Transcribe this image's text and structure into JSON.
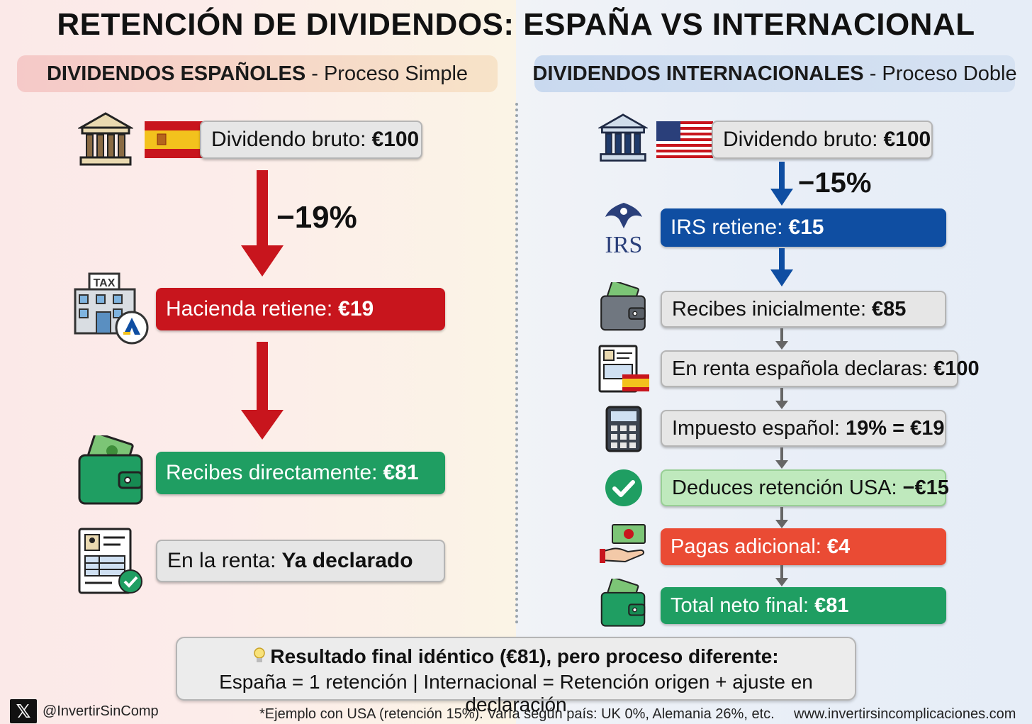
{
  "title": "RETENCIÓN DE DIVIDENDOS: ESPAÑA VS INTERNACIONAL",
  "left": {
    "header_bold": "DIVIDENDOS ESPAÑOLES",
    "header_rest": "- Proceso Simple",
    "gross_label": "Dividendo bruto:",
    "gross_value": "€100",
    "pct": "−19%",
    "withheld_label": "Hacienda retiene:",
    "withheld_value": "€19",
    "receive_label": "Recibes directamente:",
    "receive_value": "€81",
    "renta_label": "En la renta:",
    "renta_value": "Ya declarado"
  },
  "right": {
    "header_bold": "DIVIDENDOS INTERNACIONALES",
    "header_rest": "- Proceso Doble",
    "gross_label": "Dividendo bruto:",
    "gross_value": "€100",
    "pct": "−15%",
    "irs_logo": "IRS",
    "irs_label": "IRS retiene:",
    "irs_value": "€15",
    "initial_label": "Recibes inicialmente:",
    "initial_value": "€85",
    "declare_label": "En renta española declaras:",
    "declare_value": "€100",
    "tax_label": "Impuesto español:",
    "tax_value": "19% = €19",
    "deduct_label": "Deduces retención USA:",
    "deduct_value": "−€15",
    "extra_label": "Pagas adicional:",
    "extra_value": "€4",
    "net_label": "Total neto final:",
    "net_value": "€81"
  },
  "result": {
    "line1": "Resultado final idéntico (€81), pero proceso diferente:",
    "line2": "España = 1 retención | Internacional = Retención origen + ajuste en declaración"
  },
  "footer": {
    "handle": "@InvertirSinComp",
    "note": "*Ejemplo con USA (retención 15%). Varía según país: UK 0%, Alemania 26%, etc.",
    "website": "www.invertirsincomplicaciones.com"
  },
  "icons": [
    "bank-icon",
    "spain-flag-icon",
    "usa-flag-icon",
    "tax-office-icon",
    "wallet-icon",
    "tax-form-icon",
    "irs-logo-icon",
    "calculator-icon",
    "checkmark-icon",
    "hand-money-icon",
    "lightbulb-icon",
    "x-logo-icon"
  ],
  "colors": {
    "red": "#c8151d",
    "green": "#1f9e62",
    "blue": "#0f4ea2",
    "light_green": "#bfe9bd",
    "orange": "#ea4b34",
    "grey": "#e6e6e6"
  }
}
